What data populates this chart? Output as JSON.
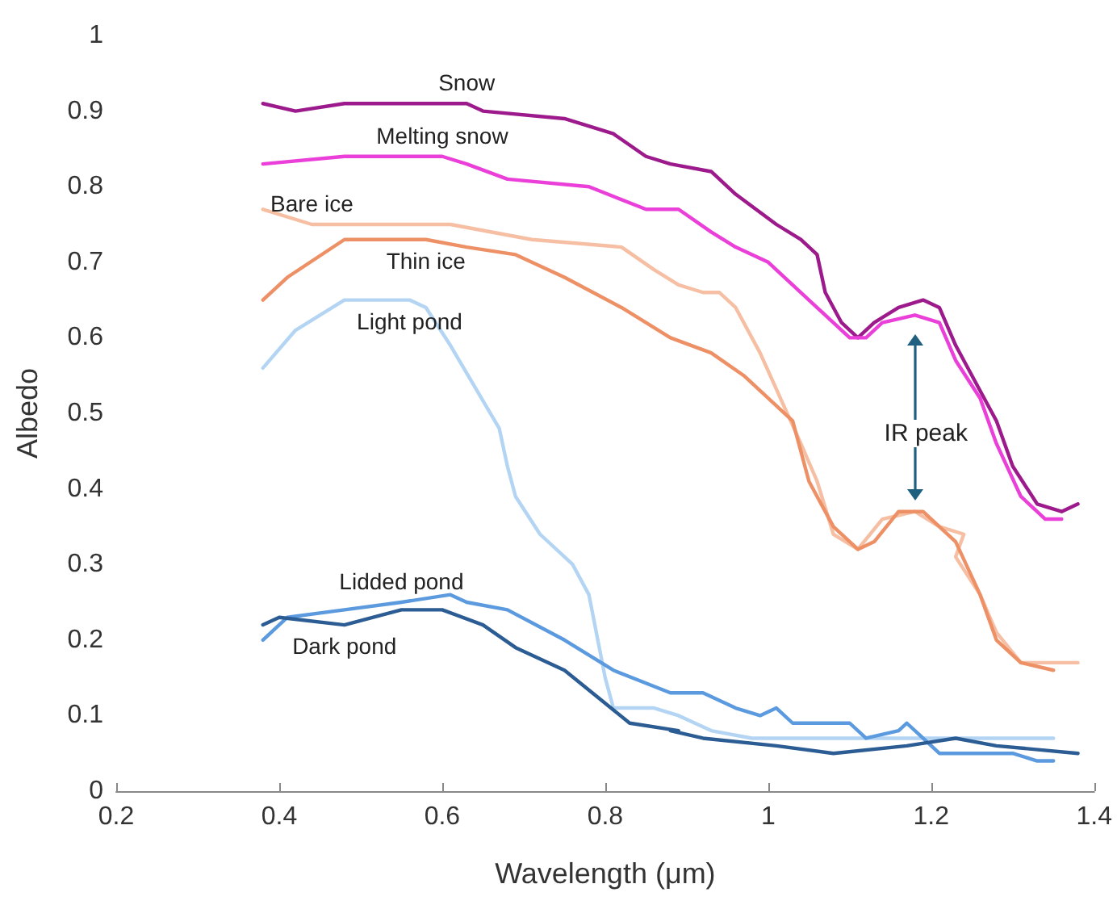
{
  "chart_data": {
    "type": "line",
    "xlabel": "Wavelength (μm)",
    "ylabel": "Albedo",
    "xlim": [
      0.2,
      1.4
    ],
    "xticks": [
      0.2,
      0.4,
      0.6,
      0.8,
      1,
      1.2,
      1.4
    ],
    "ylim": [
      0,
      1
    ],
    "yticks": [
      0,
      0.1,
      0.2,
      0.3,
      0.4,
      0.5,
      0.6,
      0.7,
      0.8,
      0.9,
      1
    ],
    "grid": false,
    "legend": false,
    "line_style": "solid",
    "annotations": [
      "IR peak"
    ],
    "series": [
      {
        "name": "Snow",
        "color": "#9c1a8c",
        "x": [
          0.38,
          0.42,
          0.48,
          0.55,
          0.63,
          0.65,
          0.75,
          0.81,
          0.85,
          0.88,
          0.93,
          0.96,
          1.01,
          1.04,
          1.06,
          1.07,
          1.09,
          1.11,
          1.13,
          1.16,
          1.19,
          1.21,
          1.23,
          1.26,
          1.28,
          1.3,
          1.33,
          1.36,
          1.38
        ],
        "values": [
          0.91,
          0.9,
          0.91,
          0.91,
          0.91,
          0.9,
          0.89,
          0.87,
          0.84,
          0.83,
          0.82,
          0.79,
          0.75,
          0.73,
          0.71,
          0.66,
          0.62,
          0.6,
          0.62,
          0.64,
          0.65,
          0.64,
          0.59,
          0.53,
          0.49,
          0.43,
          0.38,
          0.37,
          0.38
        ]
      },
      {
        "name": "Melting snow",
        "color": "#ea3fd8",
        "x": [
          0.38,
          0.48,
          0.6,
          0.63,
          0.68,
          0.78,
          0.85,
          0.89,
          0.93,
          0.96,
          1.0,
          1.07,
          1.1,
          1.12,
          1.14,
          1.18,
          1.21,
          1.23,
          1.26,
          1.28,
          1.31,
          1.34,
          1.36
        ],
        "values": [
          0.83,
          0.84,
          0.84,
          0.83,
          0.81,
          0.8,
          0.77,
          0.77,
          0.74,
          0.72,
          0.7,
          0.63,
          0.6,
          0.6,
          0.62,
          0.63,
          0.62,
          0.57,
          0.52,
          0.46,
          0.39,
          0.36,
          0.36
        ]
      },
      {
        "name": "Bare ice",
        "color": "#f6bfa3",
        "x": [
          0.38,
          0.44,
          0.61,
          0.71,
          0.82,
          0.86,
          0.89,
          0.92,
          0.94,
          0.96,
          0.99,
          1.04,
          1.06,
          1.08,
          1.11,
          1.14,
          1.18,
          1.21,
          1.24,
          1.23,
          1.26,
          1.28,
          1.31,
          1.35,
          1.38
        ],
        "values": [
          0.77,
          0.75,
          0.75,
          0.73,
          0.72,
          0.69,
          0.67,
          0.66,
          0.66,
          0.64,
          0.58,
          0.46,
          0.41,
          0.34,
          0.32,
          0.36,
          0.37,
          0.35,
          0.34,
          0.31,
          0.26,
          0.21,
          0.17,
          0.17,
          0.17
        ]
      },
      {
        "name": "Thin ice",
        "color": "#ee9066",
        "x": [
          0.38,
          0.41,
          0.48,
          0.58,
          0.63,
          0.69,
          0.75,
          0.82,
          0.88,
          0.93,
          0.97,
          1.03,
          1.05,
          1.08,
          1.11,
          1.13,
          1.16,
          1.19,
          1.23,
          1.26,
          1.28,
          1.31,
          1.35
        ],
        "values": [
          0.65,
          0.68,
          0.73,
          0.73,
          0.72,
          0.71,
          0.68,
          0.64,
          0.6,
          0.58,
          0.55,
          0.49,
          0.41,
          0.35,
          0.32,
          0.33,
          0.37,
          0.37,
          0.33,
          0.26,
          0.2,
          0.17,
          0.16
        ]
      },
      {
        "name": "Light pond",
        "color": "#b3d5f3",
        "x": [
          0.38,
          0.42,
          0.48,
          0.56,
          0.58,
          0.61,
          0.67,
          0.68,
          0.69,
          0.72,
          0.76,
          0.78,
          0.8,
          0.81,
          0.86,
          0.89,
          0.93,
          0.98,
          1.12,
          1.19,
          1.35
        ],
        "values": [
          0.56,
          0.61,
          0.65,
          0.65,
          0.64,
          0.59,
          0.48,
          0.43,
          0.39,
          0.34,
          0.3,
          0.26,
          0.15,
          0.11,
          0.11,
          0.1,
          0.08,
          0.07,
          0.07,
          0.07,
          0.07
        ]
      },
      {
        "name": "Lidded pond",
        "color": "#5b9ade",
        "x": [
          0.38,
          0.41,
          0.48,
          0.55,
          0.61,
          0.63,
          0.68,
          0.75,
          0.81,
          0.88,
          0.89,
          0.92,
          0.96,
          0.99,
          1.01,
          1.03,
          1.07,
          1.1,
          1.12,
          1.16,
          1.17,
          1.19,
          1.21,
          1.24,
          1.3,
          1.33,
          1.35
        ],
        "values": [
          0.2,
          0.23,
          0.24,
          0.25,
          0.26,
          0.25,
          0.24,
          0.2,
          0.16,
          0.13,
          0.13,
          0.13,
          0.11,
          0.1,
          0.11,
          0.09,
          0.09,
          0.09,
          0.07,
          0.08,
          0.09,
          0.07,
          0.05,
          0.05,
          0.05,
          0.04,
          0.04
        ]
      },
      {
        "name": "Dark pond",
        "color": "#2b5c93",
        "x": [
          0.38,
          0.4,
          0.48,
          0.55,
          0.6,
          0.65,
          0.69,
          0.75,
          0.83,
          0.89,
          0.88,
          0.92,
          1.01,
          1.08,
          1.17,
          1.23,
          1.28,
          1.38
        ],
        "values": [
          0.22,
          0.23,
          0.22,
          0.24,
          0.24,
          0.22,
          0.19,
          0.16,
          0.09,
          0.08,
          0.08,
          0.07,
          0.06,
          0.05,
          0.06,
          0.07,
          0.06,
          0.05
        ]
      }
    ]
  }
}
